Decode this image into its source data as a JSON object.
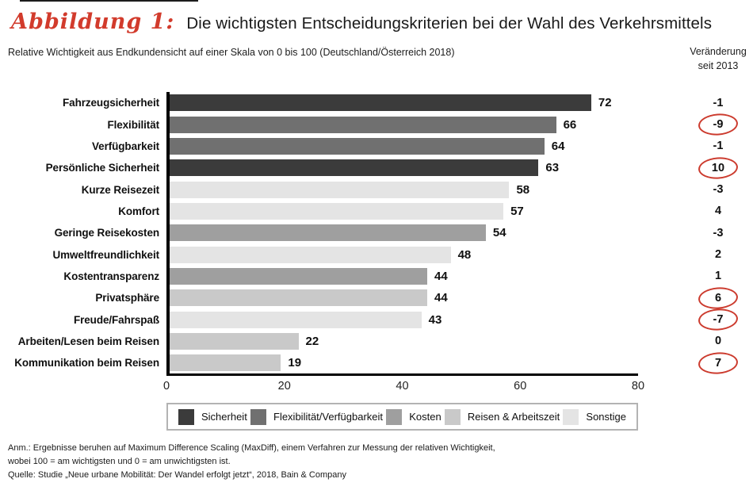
{
  "header": {
    "figure_label": "Abbildung 1:",
    "title": "Die wichtigsten Entscheidungskriterien bei der Wahl des Verkehrsmittels",
    "subtitle": "Relative Wichtigkeit aus Endkundensicht auf einer Skala von 0 bis 100 (Deutschland/Österreich 2018)",
    "change_header": [
      "Veränderung",
      "seit 2013"
    ]
  },
  "chart_data": {
    "type": "bar",
    "orientation": "horizontal",
    "title": "Die wichtigsten Entscheidungskriterien bei der Wahl des Verkehrsmittels",
    "subtitle": "Relative Wichtigkeit aus Endkundensicht auf einer Skala von 0 bis 100 (Deutschland/Österreich 2018)",
    "xlim": [
      0,
      80
    ],
    "x_ticks": [
      "0",
      "20",
      "40",
      "60",
      "80"
    ],
    "grid": false,
    "legend_position": "bottom",
    "rows": [
      {
        "label": "Fahrzeugsicherheit",
        "value": 72,
        "change": "-1",
        "circled": false,
        "group": "Sicherheit"
      },
      {
        "label": "Flexibilität",
        "value": 66,
        "change": "-9",
        "circled": true,
        "group": "Flexibilität/Verfügbarkeit"
      },
      {
        "label": "Verfügbarkeit",
        "value": 64,
        "change": "-1",
        "circled": false,
        "group": "Flexibilität/Verfügbarkeit"
      },
      {
        "label": "Persönliche Sicherheit",
        "value": 63,
        "change": "10",
        "circled": true,
        "group": "Sicherheit"
      },
      {
        "label": "Kurze Reisezeit",
        "value": 58,
        "change": "-3",
        "circled": false,
        "group": "Sonstige"
      },
      {
        "label": "Komfort",
        "value": 57,
        "change": "4",
        "circled": false,
        "group": "Sonstige"
      },
      {
        "label": "Geringe Reisekosten",
        "value": 54,
        "change": "-3",
        "circled": false,
        "group": "Kosten"
      },
      {
        "label": "Umweltfreundlichkeit",
        "value": 48,
        "change": "2",
        "circled": false,
        "group": "Sonstige"
      },
      {
        "label": "Kostentransparenz",
        "value": 44,
        "change": "1",
        "circled": false,
        "group": "Kosten"
      },
      {
        "label": "Privatsphäre",
        "value": 44,
        "change": "6",
        "circled": true,
        "group": "Reisen & Arbeitszeit"
      },
      {
        "label": "Freude/Fahrspaß",
        "value": 43,
        "change": "-7",
        "circled": true,
        "group": "Sonstige"
      },
      {
        "label": "Arbeiten/Lesen beim Reisen",
        "value": 22,
        "change": "0",
        "circled": false,
        "group": "Reisen & Arbeitszeit"
      },
      {
        "label": "Kommunikation beim Reisen",
        "value": 19,
        "change": "7",
        "circled": true,
        "group": "Reisen & Arbeitszeit"
      }
    ],
    "legend": [
      {
        "label": "Sicherheit",
        "color": "#3b3b3b"
      },
      {
        "label": "Flexibilität/Verfügbarkeit",
        "color": "#707070"
      },
      {
        "label": "Kosten",
        "color": "#9f9f9f"
      },
      {
        "label": "Reisen & Arbeitszeit",
        "color": "#c9c9c9"
      },
      {
        "label": "Sonstige",
        "color": "#e4e4e4"
      }
    ],
    "group_colors": {
      "Sicherheit": "#3b3b3b",
      "Flexibilität/Verfügbarkeit": "#707070",
      "Kosten": "#9f9f9f",
      "Reisen & Arbeitszeit": "#c9c9c9",
      "Sonstige": "#e4e4e4"
    }
  },
  "annotations": {
    "circle_color": "#cc3b2e",
    "figure_label_color": "#d23b2c"
  },
  "footnotes": [
    "Anm.: Ergebnisse beruhen auf Maximum Difference Scaling (MaxDiff), einem Verfahren zur Messung der relativen Wichtigkeit,",
    "wobei 100 = am wichtigsten und 0 = am unwichtigsten ist.",
    "Quelle: Studie „Neue urbane Mobilität: Der Wandel erfolgt jetzt“, 2018, Bain & Company"
  ]
}
